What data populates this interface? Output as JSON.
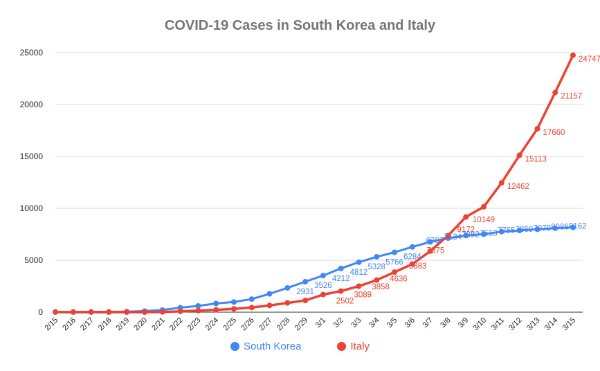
{
  "chart_data": {
    "type": "line",
    "title": "COVID-19 Cases in South Korea and Italy",
    "xlabel": "",
    "ylabel": "",
    "ylim": [
      0,
      25000
    ],
    "yticks": [
      "0",
      "5000",
      "10000",
      "15000",
      "20000",
      "25000"
    ],
    "grid": true,
    "legend_position": "bottom",
    "categories": [
      "2/15",
      "2/16",
      "2/17",
      "2/18",
      "2/19",
      "2/20",
      "2/21",
      "2/22",
      "2/23",
      "2/24",
      "2/25",
      "2/26",
      "2/27",
      "2/28",
      "2/29",
      "3/1",
      "3/2",
      "3/3",
      "3/4",
      "3/5",
      "3/6",
      "3/7",
      "3/8",
      "3/9",
      "3/10",
      "3/11",
      "3/12",
      "3/13",
      "3/14",
      "3/15"
    ],
    "series": [
      {
        "name": "South Korea",
        "color": "#4285f4",
        "values": [
          28,
          29,
          30,
          31,
          51,
          104,
          204,
          433,
          602,
          833,
          977,
          1261,
          1766,
          2337,
          2931,
          3526,
          4212,
          4812,
          5328,
          5766,
          6284,
          6767,
          7134,
          7382,
          7513,
          7755,
          7869,
          7979,
          8086,
          8162
        ],
        "labels": [
          "",
          "",
          "",
          "",
          "",
          "",
          "",
          "",
          "",
          "",
          "",
          "",
          "",
          "",
          "2931",
          "3526",
          "4212",
          "4812",
          "5328",
          "5766",
          "6284",
          "6767",
          "7134",
          "7382",
          "7513",
          "7755",
          "7869",
          "7979",
          "8086",
          "8162"
        ]
      },
      {
        "name": "Italy",
        "color": "#ea4335",
        "values": [
          3,
          3,
          3,
          3,
          3,
          3,
          20,
          79,
          150,
          227,
          320,
          445,
          650,
          888,
          1128,
          1694,
          2036,
          2502,
          3089,
          3858,
          4636,
          5883,
          7375,
          9172,
          10149,
          12462,
          15113,
          17660,
          21157,
          24747
        ],
        "labels": [
          "",
          "",
          "",
          "",
          "",
          "",
          "",
          "",
          "",
          "",
          "",
          "",
          "",
          "",
          "",
          "",
          "",
          "2502",
          "3089",
          "3858",
          "4636",
          "5883",
          "7375",
          "9172",
          "10149",
          "12462",
          "15113",
          "17660",
          "21157",
          "24747"
        ]
      }
    ]
  }
}
